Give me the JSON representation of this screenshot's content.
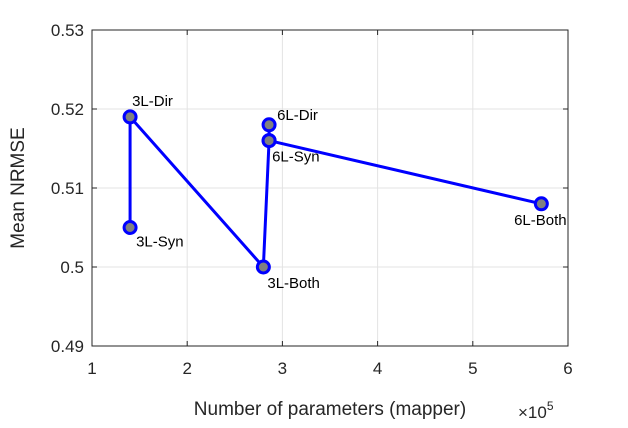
{
  "chart_data": {
    "type": "line",
    "xlabel": "Number of parameters (mapper)",
    "ylabel": "Mean NRMSE",
    "x_exponent": "×10",
    "x_exponent_power": "5",
    "xlim": [
      1,
      6
    ],
    "ylim": [
      0.49,
      0.53
    ],
    "xticks": [
      1,
      2,
      3,
      4,
      5,
      6
    ],
    "xtick_labels": [
      "1",
      "2",
      "3",
      "4",
      "5",
      "6"
    ],
    "yticks": [
      0.49,
      0.5,
      0.51,
      0.52,
      0.53
    ],
    "ytick_labels": [
      "0.49",
      "0.5",
      "0.51",
      "0.52",
      "0.53"
    ],
    "grid": true,
    "color": "#0000ff",
    "marker_fill": "#808080",
    "series": [
      {
        "points": [
          {
            "x": 1.4,
            "y": 0.505,
            "label": "3L-Syn"
          },
          {
            "x": 1.4,
            "y": 0.519,
            "label": "3L-Dir"
          },
          {
            "x": 2.8,
            "y": 0.5,
            "label": "3L-Both"
          },
          {
            "x": 2.86,
            "y": 0.516,
            "label": "6L-Syn"
          },
          {
            "x": 2.86,
            "y": 0.518,
            "label": "6L-Dir"
          },
          {
            "x": 2.86,
            "y": 0.516,
            "label": ""
          },
          {
            "x": 5.72,
            "y": 0.508,
            "label": "6L-Both"
          }
        ]
      }
    ]
  }
}
